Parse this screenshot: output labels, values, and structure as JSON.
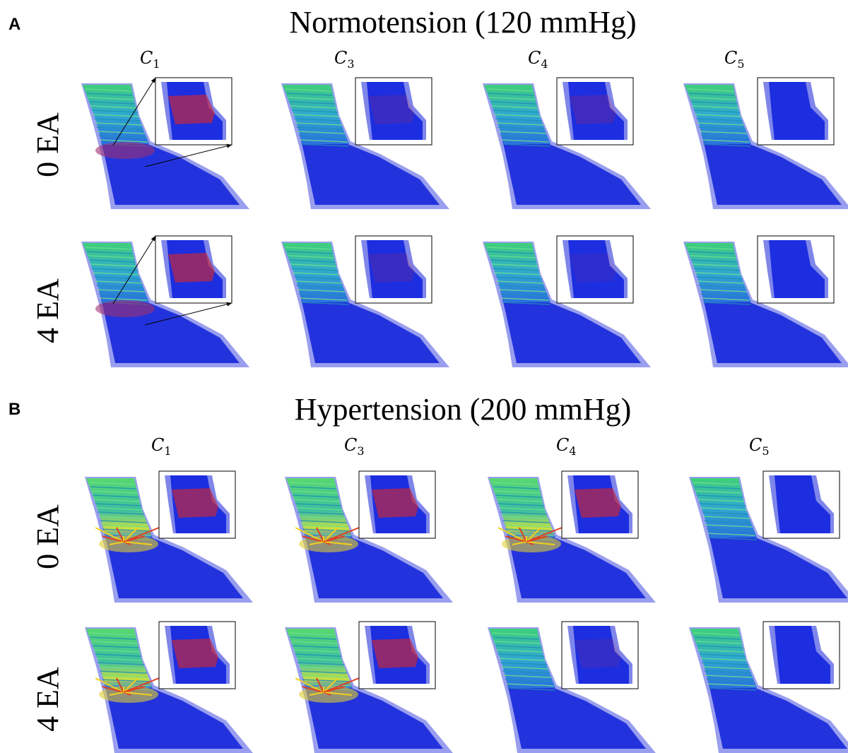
{
  "panels": [
    {
      "label": "A",
      "title": "Normotension (120 mmHg)",
      "columns": [
        {
          "symbol": "C",
          "index": "1"
        },
        {
          "symbol": "C",
          "index": "3"
        },
        {
          "symbol": "C",
          "index": "4"
        },
        {
          "symbol": "C",
          "index": "5"
        }
      ],
      "rows": [
        "0 EA",
        "4 EA"
      ]
    },
    {
      "label": "B",
      "title": "Hypertension (200 mmHg)",
      "columns": [
        {
          "symbol": "C",
          "index": "1"
        },
        {
          "symbol": "C",
          "index": "3"
        },
        {
          "symbol": "C",
          "index": "4"
        },
        {
          "symbol": "C",
          "index": "5"
        }
      ],
      "rows": [
        "0 EA",
        "4 EA"
      ]
    }
  ]
}
